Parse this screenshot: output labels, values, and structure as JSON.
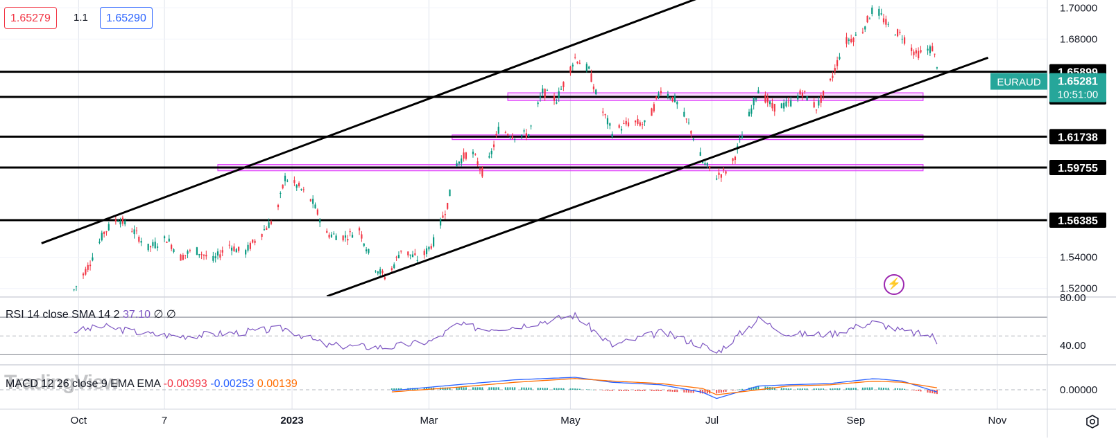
{
  "quote": {
    "bid": "1.65279",
    "spread": "1.1",
    "ask": "1.65290"
  },
  "chart_data": {
    "type": "candlestick",
    "symbol": "EURAUD",
    "last_price": "1.65281",
    "countdown": "10:51:00",
    "colors": {
      "up": "#089981",
      "down": "#f23645",
      "symbol_badge": "#26a69a",
      "zone": "#e040fb",
      "rsi": "#7e57c2",
      "macd": "#2962ff",
      "signal": "#ff6d00"
    },
    "x_labels": [
      "Oct",
      "7",
      "2023",
      "Mar",
      "May",
      "Jul",
      "Sep",
      "Nov"
    ],
    "x_dates": [
      "2022-10-01",
      "2022-11-07",
      "2023-01-01",
      "2023-03-01",
      "2023-05-01",
      "2023-07-01",
      "2023-09-01",
      "2023-11-01"
    ],
    "ylim": [
      1.515,
      1.705
    ],
    "y_ticks": [
      "1.70000",
      "1.68000",
      "1.54000",
      "1.52000"
    ],
    "horizontal_levels": [
      "1.65899",
      "1.64283",
      "1.61738",
      "1.59755",
      "1.56385"
    ],
    "zones": [
      {
        "from": "2023-04-04",
        "to": "2023-09-30",
        "low": 1.6405,
        "high": 1.6455
      },
      {
        "from": "2023-03-11",
        "to": "2023-09-30",
        "low": 1.6155,
        "high": 1.6185
      },
      {
        "from": "2022-11-30",
        "to": "2023-09-30",
        "low": 1.5955,
        "high": 1.5995
      }
    ],
    "trendlines": [
      {
        "from": [
          "2022-09-15",
          1.549
        ],
        "to": [
          "2023-08-07",
          1.73
        ]
      },
      {
        "from": [
          "2023-01-16",
          1.515
        ],
        "to": [
          "2023-10-28",
          1.668
        ]
      }
    ],
    "price_path": [
      [
        "2022-09-29",
        1.519
      ],
      [
        "2022-10-05",
        1.534
      ],
      [
        "2022-10-12",
        1.556
      ],
      [
        "2022-10-18",
        1.565
      ],
      [
        "2022-10-24",
        1.558
      ],
      [
        "2022-10-31",
        1.546
      ],
      [
        "2022-11-08",
        1.552
      ],
      [
        "2022-11-14",
        1.54
      ],
      [
        "2022-11-20",
        1.545
      ],
      [
        "2022-11-28",
        1.538
      ],
      [
        "2022-12-05",
        1.548
      ],
      [
        "2022-12-11",
        1.542
      ],
      [
        "2022-12-19",
        1.556
      ],
      [
        "2022-12-25",
        1.566
      ],
      [
        "2022-12-29",
        1.591
      ],
      [
        "2023-01-04",
        1.585
      ],
      [
        "2023-01-10",
        1.575
      ],
      [
        "2023-01-16",
        1.555
      ],
      [
        "2023-01-24",
        1.553
      ],
      [
        "2023-01-30",
        1.558
      ],
      [
        "2023-02-05",
        1.535
      ],
      [
        "2023-02-11",
        1.526
      ],
      [
        "2023-02-17",
        1.545
      ],
      [
        "2023-02-25",
        1.538
      ],
      [
        "2023-03-03",
        1.55
      ],
      [
        "2023-03-09",
        1.574
      ],
      [
        "2023-03-13",
        1.6
      ],
      [
        "2023-03-19",
        1.609
      ],
      [
        "2023-03-25",
        1.592
      ],
      [
        "2023-03-31",
        1.622
      ],
      [
        "2023-04-07",
        1.618
      ],
      [
        "2023-04-13",
        1.619
      ],
      [
        "2023-04-19",
        1.646
      ],
      [
        "2023-04-25",
        1.641
      ],
      [
        "2023-05-03",
        1.668
      ],
      [
        "2023-05-09",
        1.66
      ],
      [
        "2023-05-13",
        1.64
      ],
      [
        "2023-05-19",
        1.62
      ],
      [
        "2023-05-27",
        1.627
      ],
      [
        "2023-06-03",
        1.625
      ],
      [
        "2023-06-09",
        1.648
      ],
      [
        "2023-06-15",
        1.641
      ],
      [
        "2023-06-21",
        1.625
      ],
      [
        "2023-06-27",
        1.601
      ],
      [
        "2023-07-03",
        1.592
      ],
      [
        "2023-07-09",
        1.597
      ],
      [
        "2023-07-15",
        1.622
      ],
      [
        "2023-07-21",
        1.648
      ],
      [
        "2023-07-27",
        1.636
      ],
      [
        "2023-08-03",
        1.638
      ],
      [
        "2023-08-09",
        1.646
      ],
      [
        "2023-08-15",
        1.636
      ],
      [
        "2023-08-21",
        1.652
      ],
      [
        "2023-08-27",
        1.678
      ],
      [
        "2023-09-03",
        1.683
      ],
      [
        "2023-09-09",
        1.701
      ],
      [
        "2023-09-15",
        1.688
      ],
      [
        "2023-09-21",
        1.682
      ],
      [
        "2023-09-27",
        1.67
      ],
      [
        "2023-10-04",
        1.674
      ],
      [
        "2023-10-08",
        1.653
      ]
    ],
    "rsi": {
      "title": "RSI 14 close SMA 14 2",
      "value": "37.10",
      "na1": "∅",
      "na2": "∅",
      "levels": [
        70,
        50,
        30
      ],
      "tick": "40.00",
      "tick_top": "80.00",
      "path": [
        [
          "2022-09-29",
          55
        ],
        [
          "2022-10-12",
          60
        ],
        [
          "2022-10-31",
          52
        ],
        [
          "2022-11-14",
          50
        ],
        [
          "2022-12-05",
          53
        ],
        [
          "2022-12-29",
          58
        ],
        [
          "2023-01-16",
          40
        ],
        [
          "2023-02-11",
          38
        ],
        [
          "2023-03-03",
          45
        ],
        [
          "2023-03-13",
          62
        ],
        [
          "2023-03-25",
          58
        ],
        [
          "2023-04-07",
          60
        ],
        [
          "2023-05-03",
          72
        ],
        [
          "2023-05-19",
          40
        ],
        [
          "2023-06-09",
          54
        ],
        [
          "2023-06-27",
          40
        ],
        [
          "2023-07-03",
          32
        ],
        [
          "2023-07-21",
          68
        ],
        [
          "2023-08-03",
          52
        ],
        [
          "2023-08-21",
          52
        ],
        [
          "2023-09-09",
          65
        ],
        [
          "2023-09-21",
          55
        ],
        [
          "2023-10-04",
          50
        ],
        [
          "2023-10-08",
          37
        ]
      ]
    },
    "macd": {
      "title": "MACD 12 26 close 9 EMA EMA",
      "histogram": "-0.00393",
      "macd": "-0.00253",
      "signal": "0.00139",
      "tick": "0.00000",
      "macd_path": [
        [
          "2023-02-11",
          -0.001
        ],
        [
          "2023-03-13",
          0.004
        ],
        [
          "2023-04-07",
          0.008
        ],
        [
          "2023-05-03",
          0.01
        ],
        [
          "2023-05-19",
          0.006
        ],
        [
          "2023-06-09",
          0.004
        ],
        [
          "2023-06-27",
          -0.002
        ],
        [
          "2023-07-03",
          -0.007
        ],
        [
          "2023-07-21",
          0.003
        ],
        [
          "2023-08-03",
          0.004
        ],
        [
          "2023-08-21",
          0.005
        ],
        [
          "2023-09-09",
          0.009
        ],
        [
          "2023-09-21",
          0.007
        ],
        [
          "2023-10-08",
          -0.003
        ]
      ],
      "signal_path": [
        [
          "2023-02-11",
          -0.002
        ],
        [
          "2023-03-13",
          0.002
        ],
        [
          "2023-04-07",
          0.006
        ],
        [
          "2023-05-03",
          0.009
        ],
        [
          "2023-05-19",
          0.007
        ],
        [
          "2023-06-09",
          0.005
        ],
        [
          "2023-06-27",
          0.001
        ],
        [
          "2023-07-03",
          -0.004
        ],
        [
          "2023-07-21",
          0.0
        ],
        [
          "2023-08-03",
          0.003
        ],
        [
          "2023-08-21",
          0.004
        ],
        [
          "2023-09-09",
          0.007
        ],
        [
          "2023-09-21",
          0.006
        ],
        [
          "2023-10-08",
          0.001
        ]
      ]
    }
  },
  "branding": {
    "watermark": "TradingView"
  },
  "icons": {
    "alert": "flash-icon",
    "settings": "settings-icon"
  }
}
